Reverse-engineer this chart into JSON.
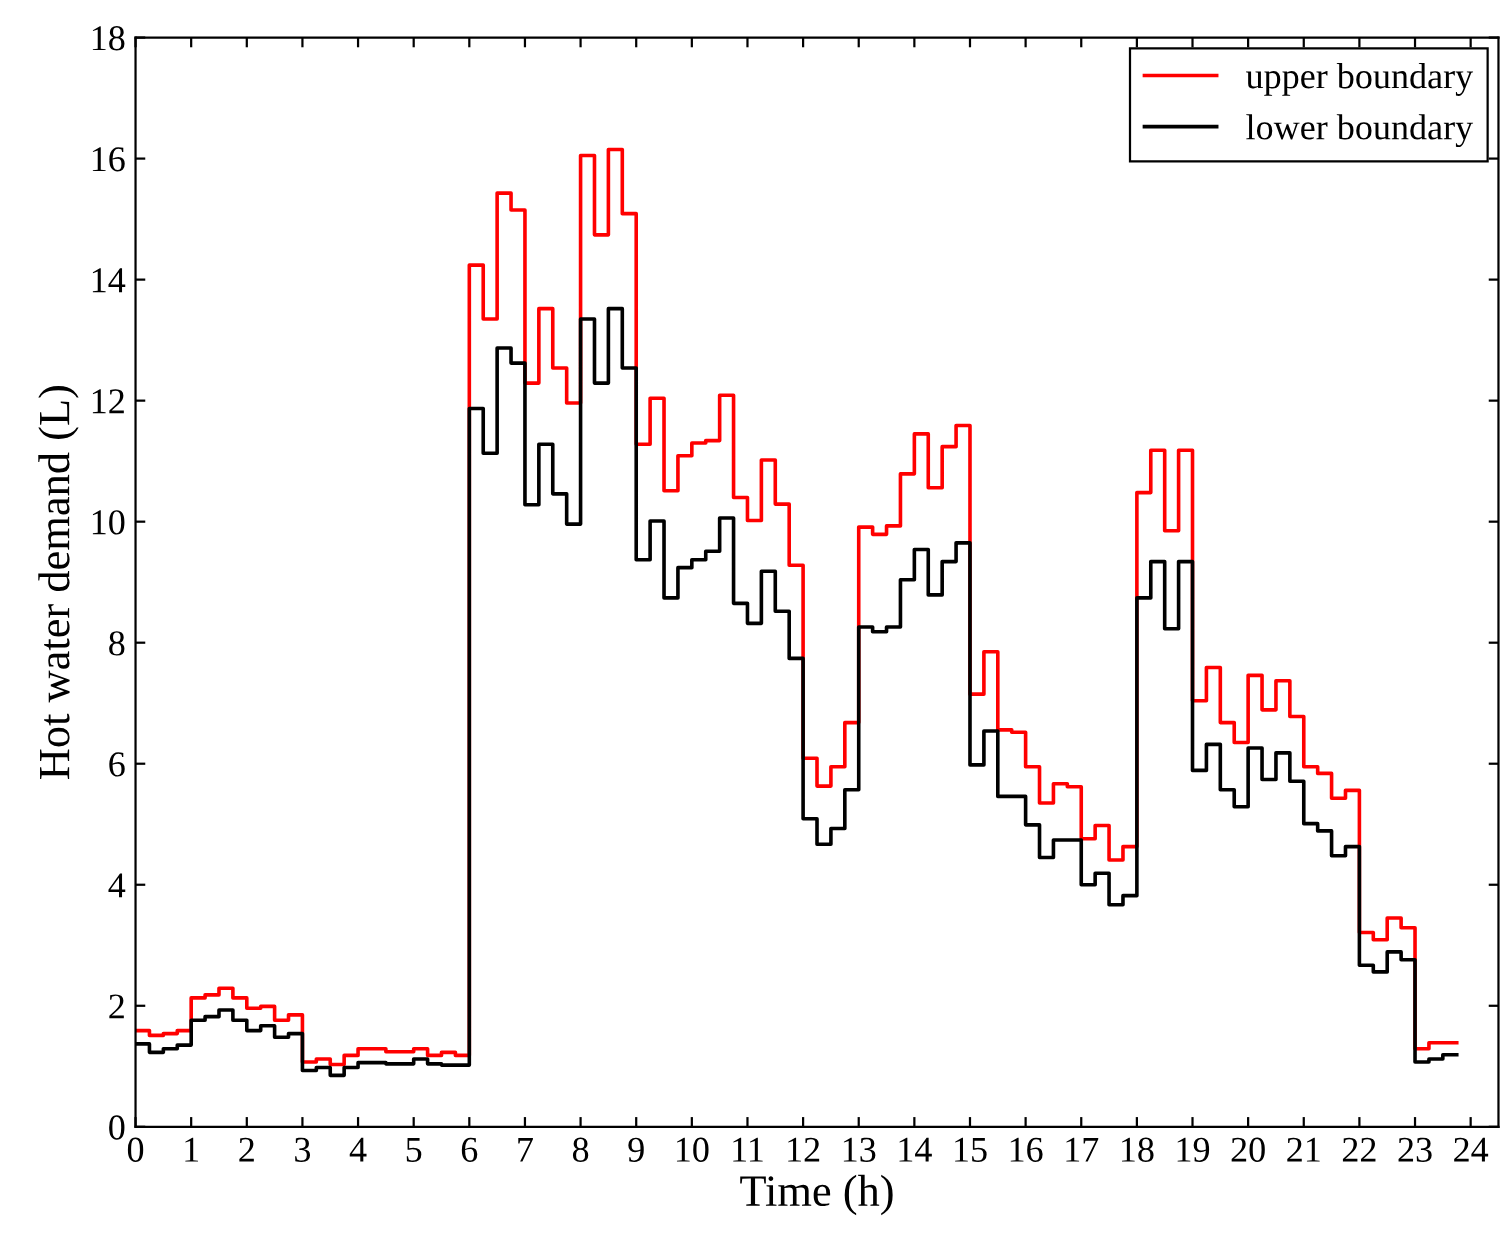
{
  "chart_data": {
    "type": "step",
    "xlabel": "Time (h)",
    "ylabel": "Hot water demand (L)",
    "x": [
      0,
      0.25,
      0.5,
      0.75,
      1,
      1.25,
      1.5,
      1.75,
      2,
      2.25,
      2.5,
      2.75,
      3,
      3.25,
      3.5,
      3.75,
      4,
      4.25,
      4.5,
      4.75,
      5,
      5.25,
      5.5,
      5.75,
      6,
      6.25,
      6.5,
      6.75,
      7,
      7.25,
      7.5,
      7.75,
      8,
      8.25,
      8.5,
      8.75,
      9,
      9.25,
      9.5,
      9.75,
      10,
      10.25,
      10.5,
      10.75,
      11,
      11.25,
      11.5,
      11.75,
      12,
      12.25,
      12.5,
      12.75,
      13,
      13.25,
      13.5,
      13.75,
      14,
      14.25,
      14.5,
      14.75,
      15,
      15.25,
      15.5,
      15.75,
      16,
      16.25,
      16.5,
      16.75,
      17,
      17.25,
      17.5,
      17.75,
      18,
      18.25,
      18.5,
      18.75,
      19,
      19.25,
      19.5,
      19.75,
      20,
      20.25,
      20.5,
      20.75,
      21,
      21.25,
      21.5,
      21.75,
      22,
      22.25,
      22.5,
      22.75,
      23,
      23.25,
      23.5,
      23.75
    ],
    "series": [
      {
        "name": "upper boundary",
        "color": "#ff0000",
        "values": [
          1.59,
          1.51,
          1.54,
          1.59,
          2.13,
          2.18,
          2.29,
          2.13,
          1.96,
          1.99,
          1.76,
          1.85,
          1.07,
          1.12,
          1.03,
          1.18,
          1.29,
          1.29,
          1.24,
          1.24,
          1.29,
          1.18,
          1.23,
          1.18,
          14.24,
          13.35,
          15.43,
          15.15,
          12.29,
          13.52,
          12.54,
          11.96,
          16.05,
          14.74,
          16.15,
          15.09,
          11.28,
          12.04,
          10.51,
          11.09,
          11.3,
          11.34,
          12.09,
          10.4,
          10.02,
          11.02,
          10.29,
          9.28,
          6.09,
          5.63,
          5.95,
          6.68,
          9.91,
          9.79,
          9.93,
          10.79,
          11.45,
          10.56,
          11.24,
          11.59,
          7.15,
          7.85,
          6.56,
          6.52,
          5.95,
          5.35,
          5.67,
          5.62,
          4.76,
          4.98,
          4.41,
          4.63,
          10.48,
          11.18,
          9.85,
          11.18,
          7.04,
          7.59,
          6.68,
          6.35,
          7.46,
          6.89,
          7.37,
          6.78,
          5.95,
          5.84,
          5.43,
          5.56,
          3.21,
          3.09,
          3.45,
          3.29,
          1.29,
          1.39,
          1.39,
          1.39
        ]
      },
      {
        "name": "lower boundary",
        "color": "#000000",
        "values": [
          1.37,
          1.23,
          1.29,
          1.35,
          1.76,
          1.82,
          1.93,
          1.76,
          1.59,
          1.67,
          1.48,
          1.54,
          0.93,
          0.98,
          0.85,
          0.98,
          1.06,
          1.06,
          1.04,
          1.04,
          1.12,
          1.04,
          1.02,
          1.02,
          11.87,
          11.13,
          12.87,
          12.62,
          10.28,
          11.28,
          10.46,
          9.96,
          13.35,
          12.29,
          13.52,
          12.54,
          9.37,
          10.01,
          8.74,
          9.24,
          9.37,
          9.51,
          10.06,
          8.65,
          8.32,
          9.18,
          8.52,
          7.74,
          5.09,
          4.67,
          4.93,
          5.57,
          8.26,
          8.18,
          8.26,
          9.04,
          9.54,
          8.79,
          9.34,
          9.65,
          5.98,
          6.54,
          5.46,
          5.46,
          4.99,
          4.45,
          4.74,
          4.74,
          4.0,
          4.19,
          3.67,
          3.82,
          8.74,
          9.34,
          8.23,
          9.34,
          5.89,
          6.32,
          5.57,
          5.29,
          6.26,
          5.74,
          6.18,
          5.71,
          5.01,
          4.89,
          4.48,
          4.63,
          2.67,
          2.56,
          2.89,
          2.76,
          1.07,
          1.12,
          1.19,
          1.19
        ]
      }
    ],
    "xlim": [
      0,
      24.5
    ],
    "ylim": [
      0,
      18
    ],
    "xticks": [
      0,
      1,
      2,
      3,
      4,
      5,
      6,
      7,
      8,
      9,
      10,
      11,
      12,
      13,
      14,
      15,
      16,
      17,
      18,
      19,
      20,
      21,
      22,
      23,
      24
    ],
    "yticks": [
      0,
      2,
      4,
      6,
      8,
      10,
      12,
      14,
      16,
      18
    ],
    "legend": "top right",
    "grid": false
  }
}
